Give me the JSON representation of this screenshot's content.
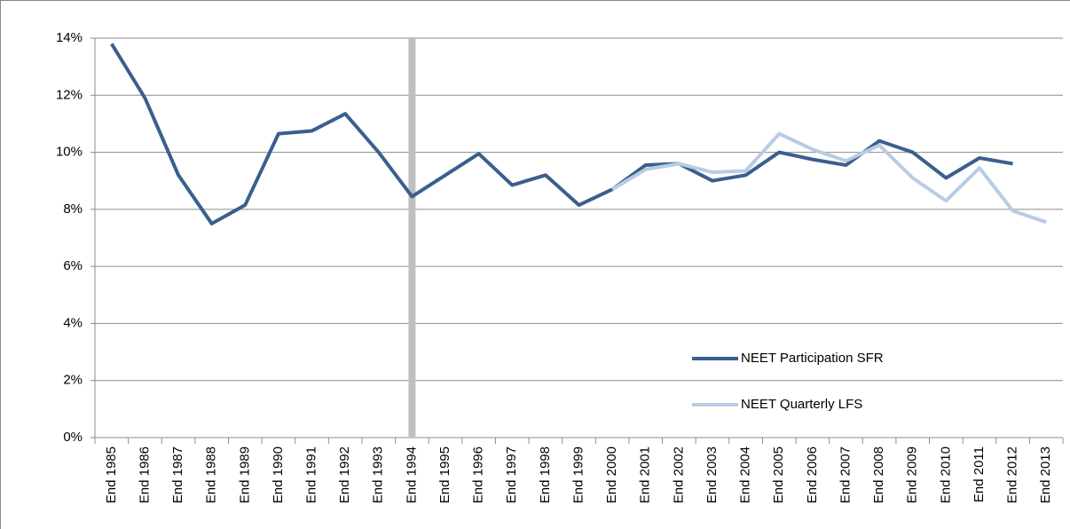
{
  "chart_data": {
    "type": "line",
    "categories": [
      "End 1985",
      "End 1986",
      "End 1987",
      "End 1988",
      "End 1989",
      "End 1990",
      "End 1991",
      "End 1992",
      "End 1993",
      "End 1994",
      "End 1995",
      "End 1996",
      "End 1997",
      "End 1998",
      "End 1999",
      "End 2000",
      "End 2001",
      "End 2002",
      "End 2003",
      "End 2004",
      "End 2005",
      "End 2006",
      "End 2007",
      "End 2008",
      "End 2009",
      "End 2010",
      "End 2011",
      "End 2012",
      "End 2013"
    ],
    "series": [
      {
        "name": "NEET Participation SFR",
        "color": "#3a5f8f",
        "values": [
          13.8,
          11.9,
          9.2,
          7.5,
          8.15,
          10.65,
          10.75,
          11.35,
          10.0,
          8.45,
          9.2,
          9.95,
          8.85,
          9.2,
          8.15,
          8.7,
          9.55,
          9.6,
          9.0,
          9.2,
          10.0,
          9.75,
          9.55,
          10.4,
          10.0,
          9.1,
          9.8,
          9.6,
          null
        ]
      },
      {
        "name": "NEET Quarterly LFS",
        "color": "#b8cce4",
        "values": [
          null,
          null,
          null,
          null,
          null,
          null,
          null,
          null,
          null,
          null,
          null,
          null,
          null,
          null,
          null,
          8.7,
          9.4,
          9.6,
          9.3,
          9.35,
          10.65,
          10.1,
          9.7,
          10.25,
          9.1,
          8.3,
          9.45,
          7.95,
          7.55
        ]
      }
    ],
    "ylim": [
      0,
      14
    ],
    "yticks": [
      {
        "value": 0,
        "label": "0%"
      },
      {
        "value": 2,
        "label": "2%"
      },
      {
        "value": 4,
        "label": "4%"
      },
      {
        "value": 6,
        "label": "6%"
      },
      {
        "value": 8,
        "label": "8%"
      },
      {
        "value": 10,
        "label": "10%"
      },
      {
        "value": 12,
        "label": "12%"
      },
      {
        "value": 14,
        "label": "14%"
      }
    ],
    "grid": true,
    "legend": "lower right",
    "reference_line": {
      "at": "End 1994",
      "color": "#bfbfbf"
    }
  }
}
